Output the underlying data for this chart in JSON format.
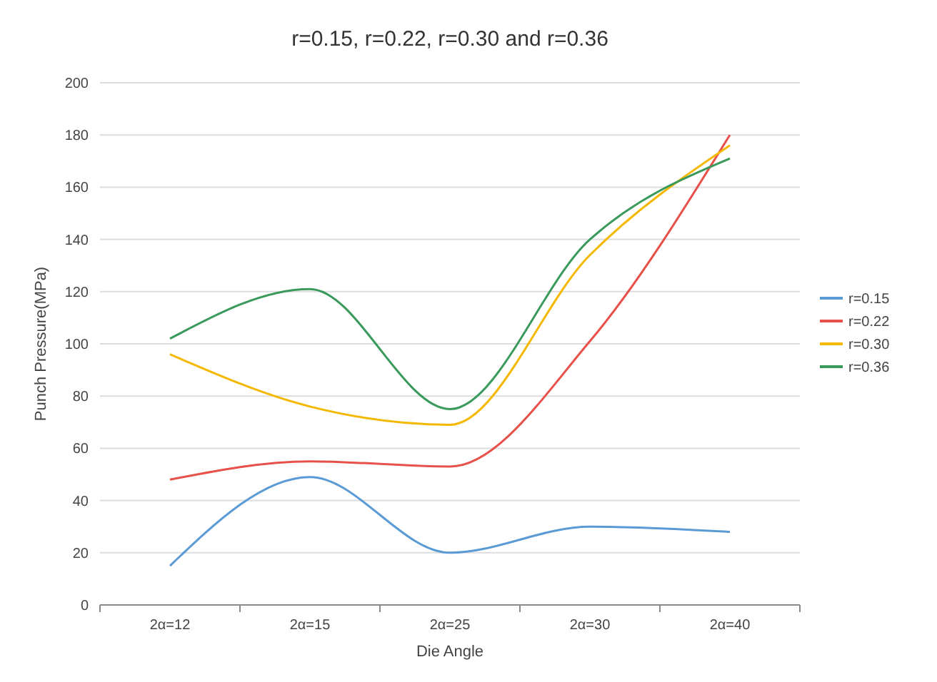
{
  "chart_data": {
    "type": "line",
    "title": "r=0.15, r=0.22, r=0.30 and r=0.36",
    "xlabel": "Die Angle",
    "ylabel": "Punch Pressure(MPa)",
    "categories": [
      "2α=12",
      "2α=15",
      "2α=25",
      "2α=30",
      "2α=40"
    ],
    "series": [
      {
        "name": "r=0.15",
        "color": "#5b9bd5",
        "values": [
          15,
          49,
          20,
          30,
          28
        ]
      },
      {
        "name": "r=0.22",
        "color": "#e8504a",
        "values": [
          48,
          55,
          53,
          101,
          180
        ]
      },
      {
        "name": "r=0.30",
        "color": "#f5b800",
        "values": [
          96,
          76,
          69,
          134,
          176
        ]
      },
      {
        "name": "r=0.36",
        "color": "#3a9a5b",
        "values": [
          102,
          121,
          75,
          140,
          171
        ]
      }
    ],
    "ylim": [
      0,
      200
    ],
    "yticks": [
      0,
      20,
      40,
      60,
      80,
      100,
      120,
      140,
      160,
      180,
      200
    ],
    "grid": "y",
    "legend": "right",
    "marker": "none",
    "line_style": "solid"
  }
}
